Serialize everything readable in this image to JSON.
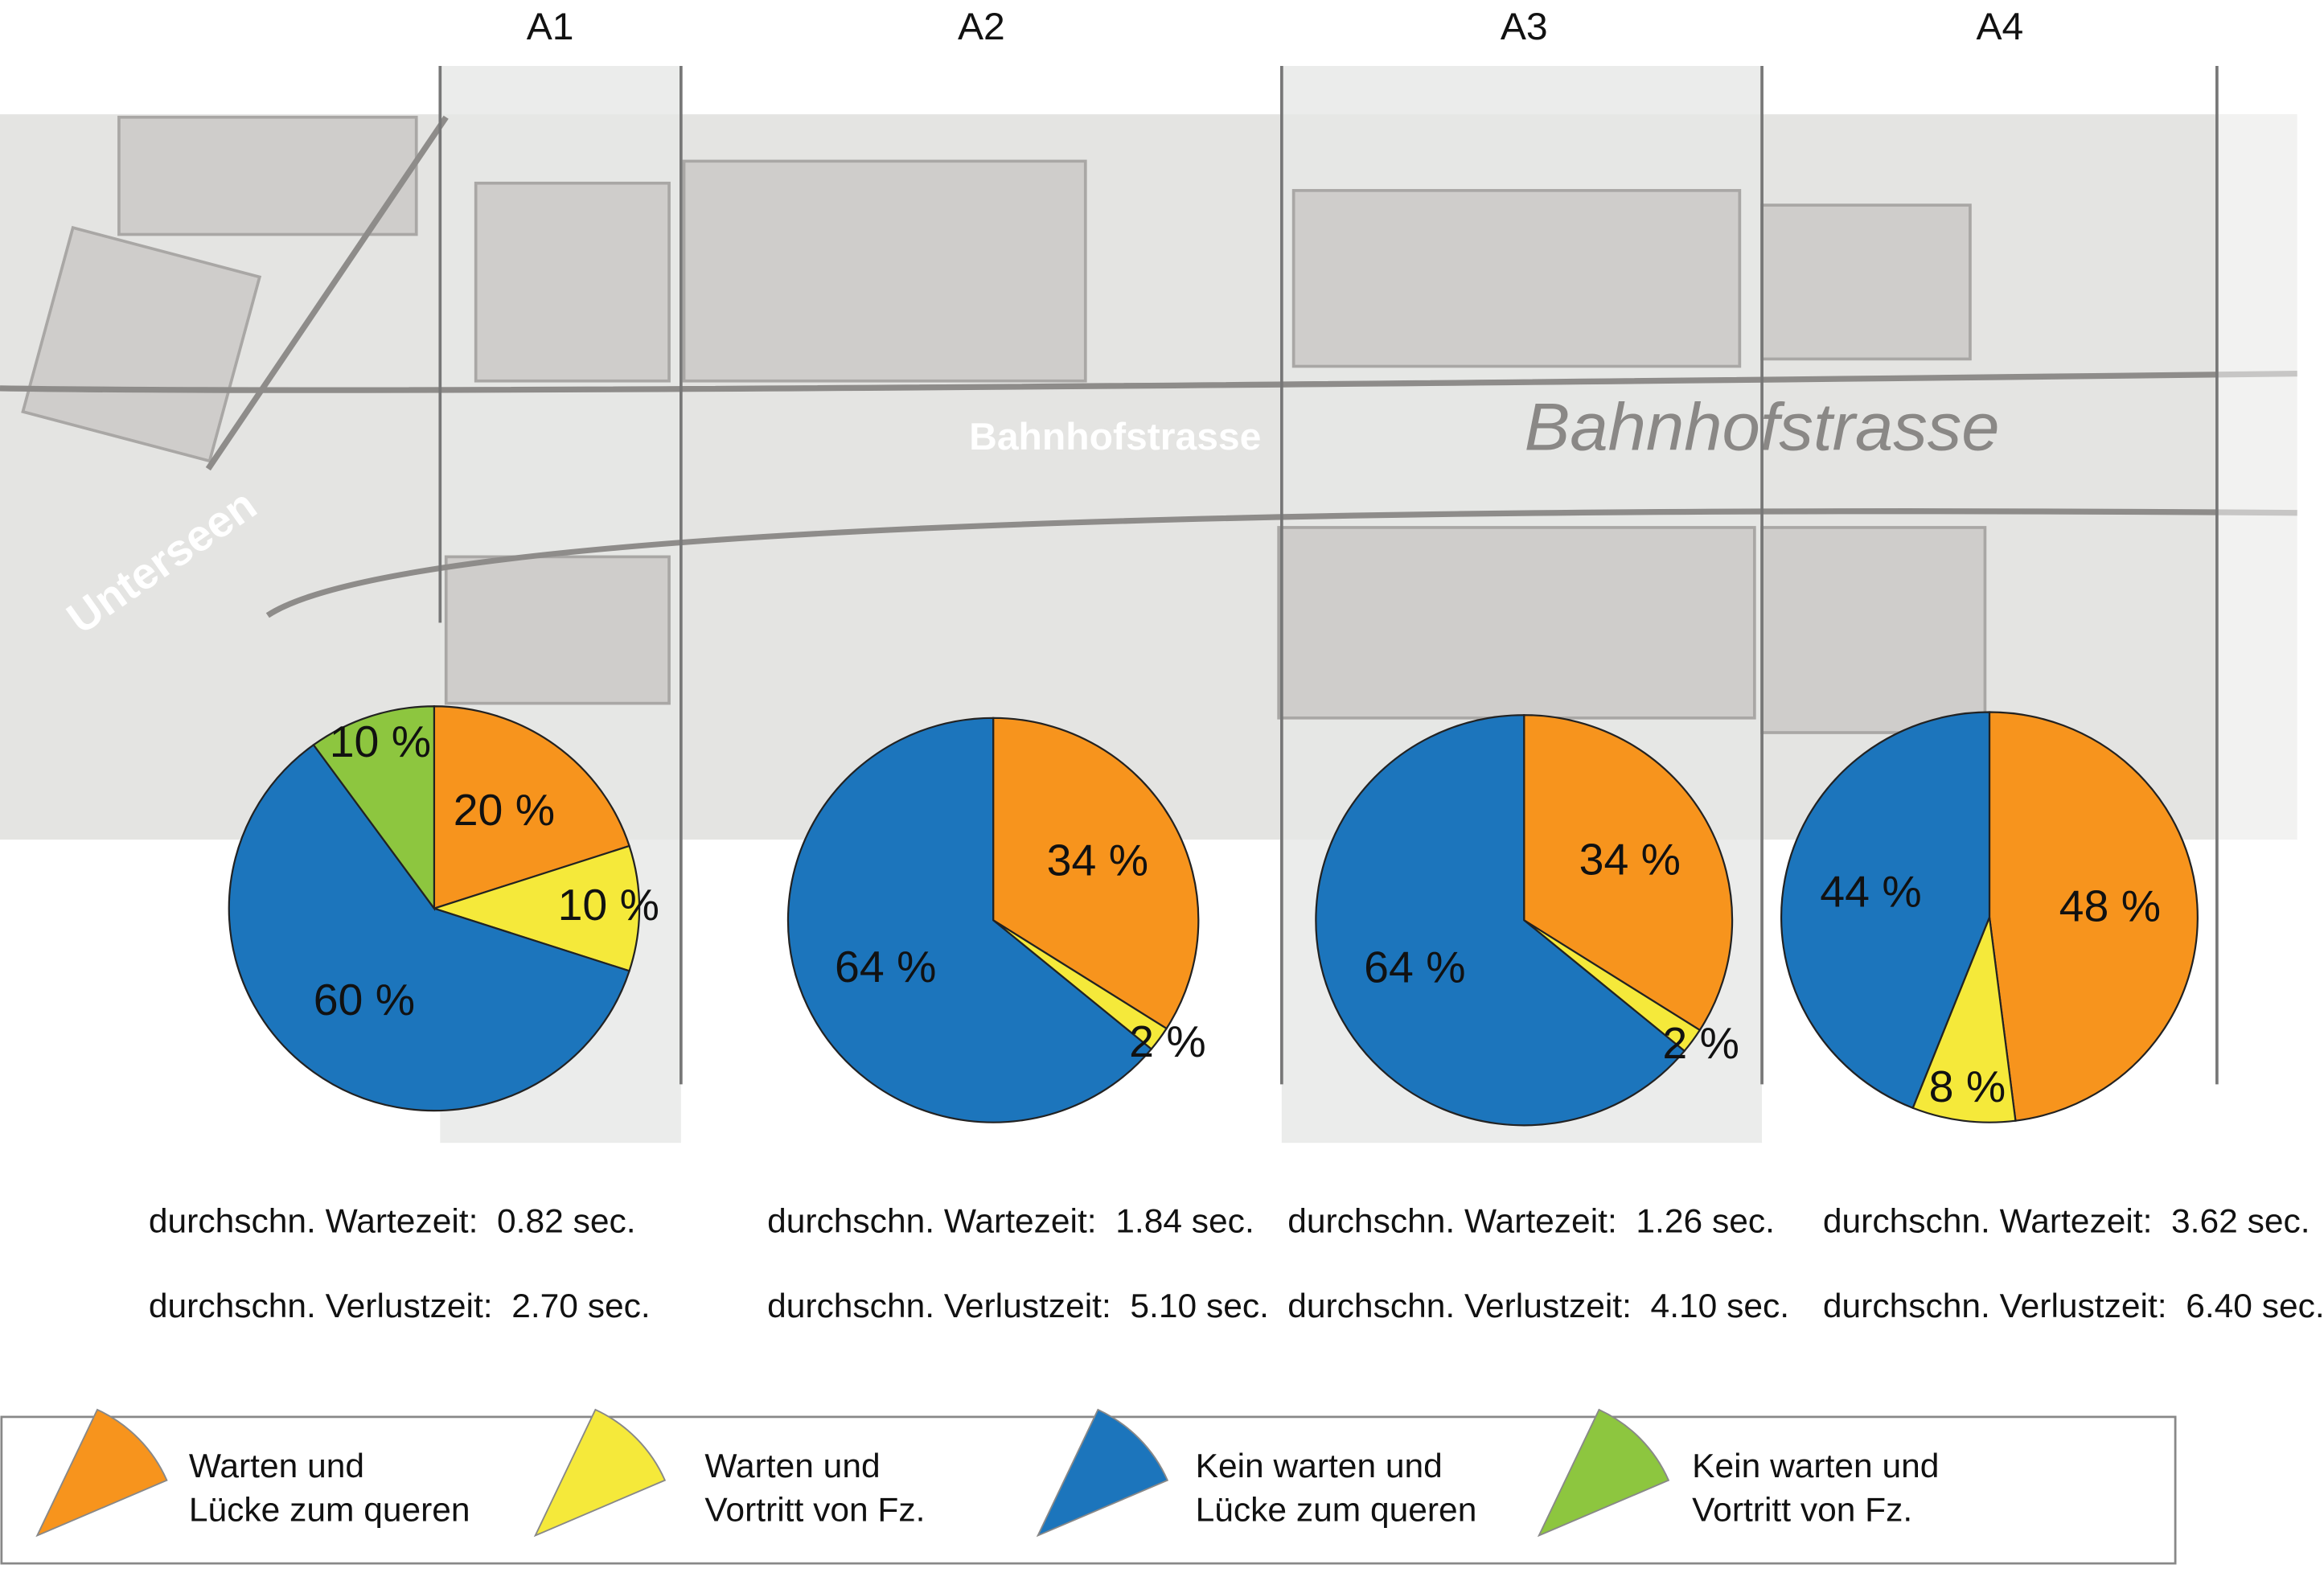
{
  "chart_data": [
    {
      "type": "pie",
      "title": "A1",
      "values": [
        20,
        10,
        60,
        10
      ],
      "value_labels": [
        "20 %",
        "10 %",
        "60 %",
        "10 %"
      ],
      "colors": [
        "#f7941d",
        "#f5e93a",
        "#1c75bc",
        "#8dc63f"
      ],
      "annotations": [
        "durchschn. Wartezeit:  0.82 sec.",
        "durchschn. Verlustzeit:  2.70 sec."
      ]
    },
    {
      "type": "pie",
      "title": "A2",
      "values": [
        34,
        2,
        64
      ],
      "value_labels": [
        "34 %",
        "2 %",
        "64 %"
      ],
      "colors": [
        "#f7941d",
        "#f5e93a",
        "#1c75bc"
      ],
      "annotations": [
        "durchschn. Wartezeit:  1.84 sec.",
        "durchschn. Verlustzeit:  5.10 sec."
      ]
    },
    {
      "type": "pie",
      "title": "A3",
      "values": [
        34,
        2,
        64
      ],
      "value_labels": [
        "34 %",
        "2 %",
        "64 %"
      ],
      "colors": [
        "#f7941d",
        "#f5e93a",
        "#1c75bc"
      ],
      "annotations": [
        "durchschn. Wartezeit:  1.26 sec.",
        "durchschn. Verlustzeit:  4.10 sec."
      ]
    },
    {
      "type": "pie",
      "title": "A4",
      "values": [
        48,
        8,
        44
      ],
      "value_labels": [
        "48 %",
        "8 %",
        "44 %"
      ],
      "colors": [
        "#f7941d",
        "#f5e93a",
        "#1c75bc"
      ],
      "annotations": [
        "durchschn. Wartezeit:  3.62 sec.",
        "durchschn. Verlustzeit:  6.40 sec."
      ]
    }
  ],
  "legend": [
    {
      "lines": [
        "Warten und",
        "Lücke zum queren"
      ],
      "color": "#f7941d"
    },
    {
      "lines": [
        "Warten und",
        "Vortritt von Fz."
      ],
      "color": "#f5e93a"
    },
    {
      "lines": [
        "Kein warten und",
        "Lücke zum queren"
      ],
      "color": "#1c75bc"
    },
    {
      "lines": [
        "Kein warten und",
        "Vortritt von Fz."
      ],
      "color": "#8dc63f"
    }
  ],
  "map_labels": [
    "Bahnhofstrasse",
    "Bahnhofstrasse",
    "Unterseen"
  ]
}
